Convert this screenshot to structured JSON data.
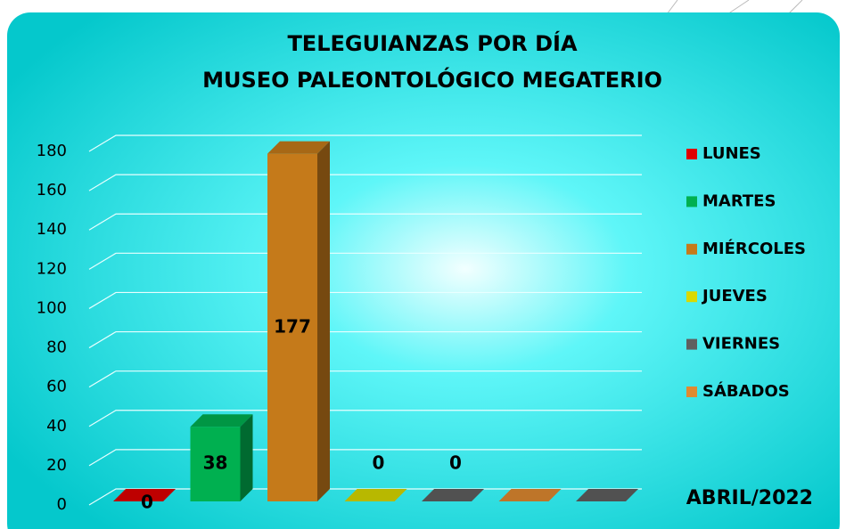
{
  "chart_data": {
    "type": "bar3d",
    "title": "TELEGUIANZAS POR DÍA",
    "subtitle": "MUSEO PALEONTOLÓGICO MEGATERIO",
    "annotation": "ABRIL/2022",
    "categories": [
      "LUNES",
      "MARTES",
      "MIÉRCOLES",
      "JUEVES",
      "VIERNES",
      "SÁBADOS",
      null
    ],
    "values": [
      0,
      38,
      177,
      0,
      0,
      0,
      0
    ],
    "colors": [
      "#e00000",
      "#00b050",
      "#c57a1a",
      "#d9d900",
      "#5f5f5f",
      "#e08a30",
      "#5f5f5f"
    ],
    "data_labels": [
      true,
      true,
      true,
      true,
      true,
      false,
      false
    ],
    "ylim": [
      0,
      180
    ],
    "yticks": [
      0,
      20,
      40,
      60,
      80,
      100,
      120,
      140,
      160,
      180
    ],
    "grid": true,
    "legend": "right"
  }
}
